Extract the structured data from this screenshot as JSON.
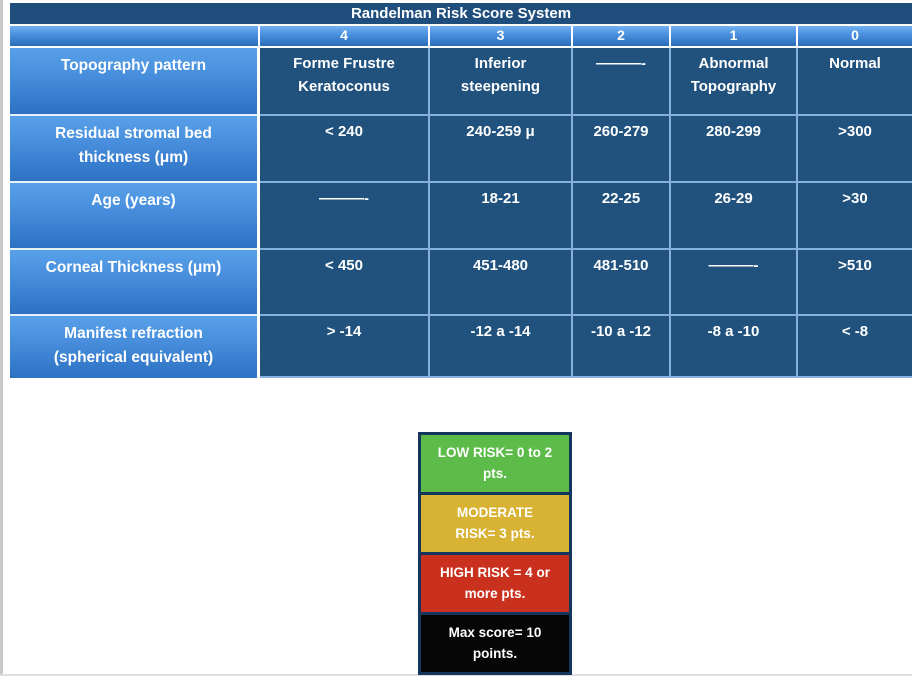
{
  "title": "Randelman Risk Score System",
  "colors": {
    "title_bar": "#1f4e7c",
    "data_cell": "#21527e",
    "grid_line": "#86b3dd",
    "header_gradient_top": "#58a1e9",
    "header_gradient_bottom": "#2c71c2",
    "legend_border": "#15365c"
  },
  "score_header": {
    "cells": [
      "4",
      "3",
      "2",
      "1",
      "0"
    ]
  },
  "table": {
    "rows": [
      {
        "label": "Topography pattern",
        "cells": [
          "Forme Frustre\nKeratoconus",
          "Inferior\nsteepening",
          "———-",
          "Abnormal\nTopography",
          "Normal"
        ]
      },
      {
        "label": "Residual stromal bed\nthickness (μm)",
        "cells": [
          "< 240",
          "240-259 μ",
          "260-279",
          "280-299",
          ">300"
        ]
      },
      {
        "label": "Age (years)",
        "cells": [
          "———-",
          "18-21",
          "22-25",
          "26-29",
          ">30"
        ]
      },
      {
        "label": "Corneal Thickness (μm)",
        "cells": [
          "< 450",
          "451-480",
          "481-510",
          "———-",
          ">510"
        ]
      },
      {
        "label": "Manifest refraction\n(spherical equivalent)",
        "cells": [
          "> -14",
          "-12 a -14",
          "-10 a -12",
          "-8 a -10",
          "< -8"
        ]
      }
    ]
  },
  "legend": {
    "items": [
      {
        "text": "LOW RISK= 0 to 2\npts.",
        "color": "#5cbb49"
      },
      {
        "text": "MODERATE\nRISK= 3 pts.",
        "color": "#d8b233"
      },
      {
        "text": "HIGH RISK = 4 or\nmore pts.",
        "color": "#c9301d"
      },
      {
        "text": "Max score= 10\npoints.",
        "color": "#060606"
      }
    ]
  }
}
